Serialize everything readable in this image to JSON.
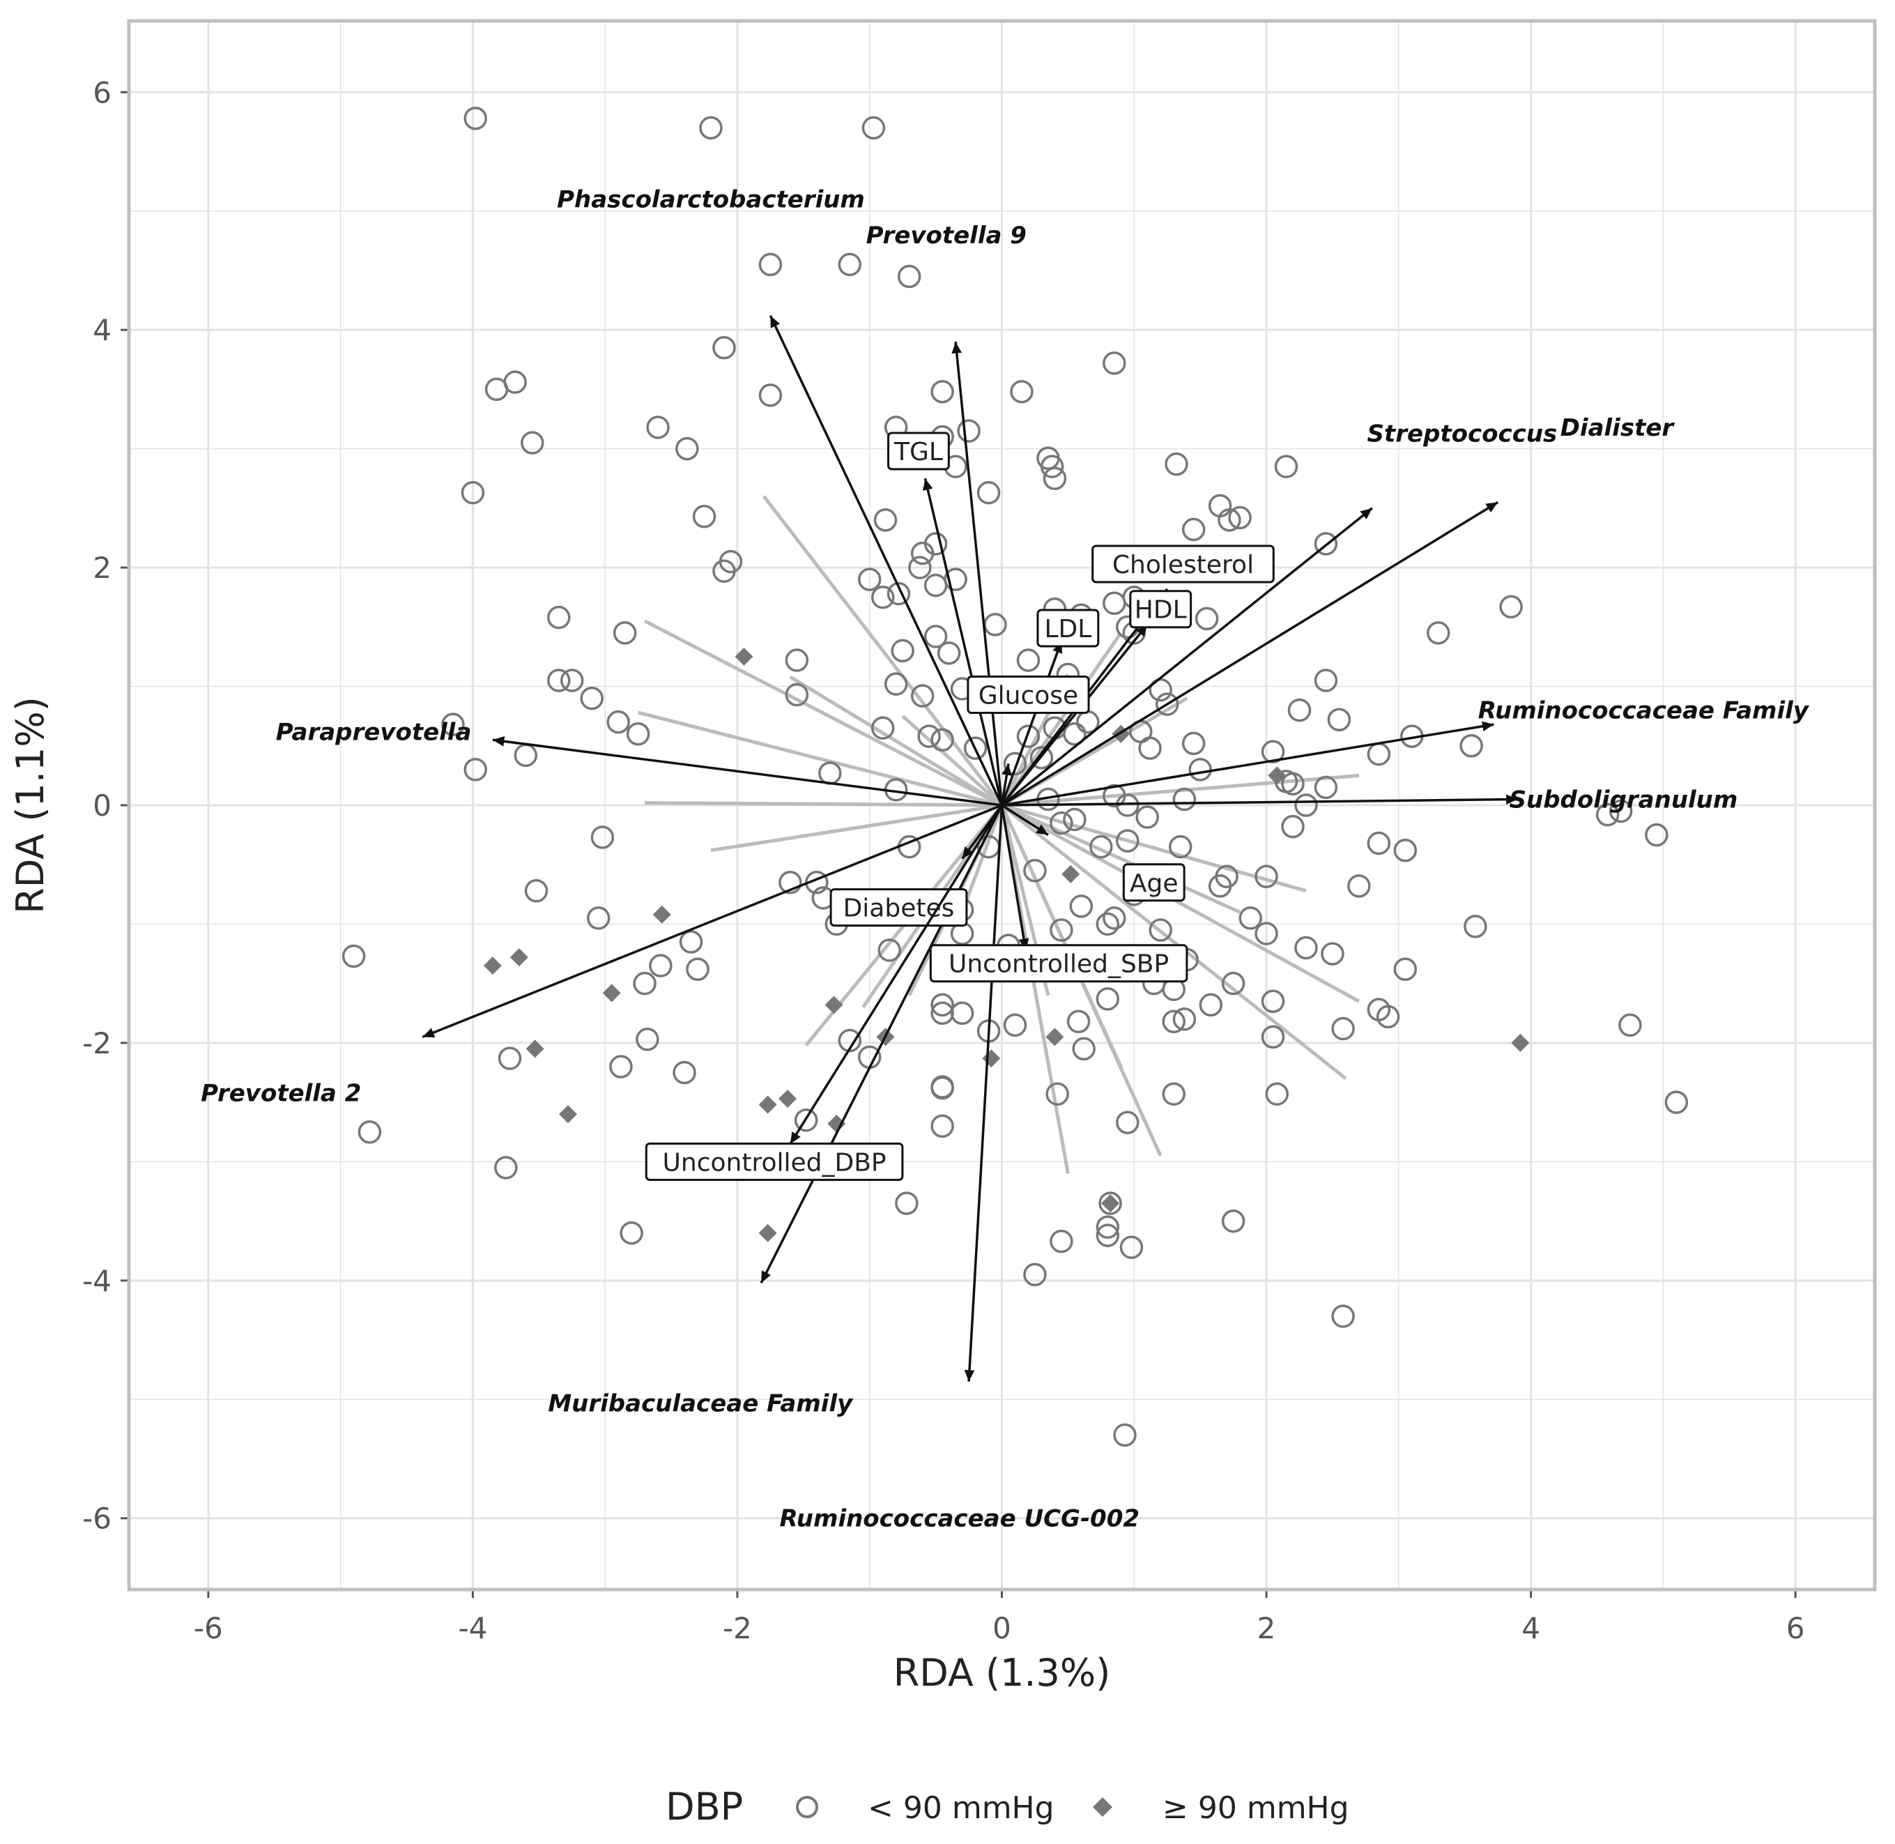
{
  "chart_data": {
    "type": "scatter",
    "subtype": "rda-biplot",
    "title": "",
    "xlabel": "RDA (1.3%)",
    "ylabel": "RDA (1.1%)",
    "xlim": [
      -6.6,
      6.6
    ],
    "ylim": [
      -6.6,
      6.6
    ],
    "xticks": [
      -6,
      -4,
      -2,
      0,
      2,
      4,
      6
    ],
    "yticks": [
      -6,
      -4,
      -2,
      0,
      2,
      4,
      6
    ],
    "xtick_labels": [
      "-6",
      "-4",
      "-2",
      "0",
      "2",
      "4",
      "6"
    ],
    "ytick_labels": [
      "-6",
      "-4",
      "-2",
      "0",
      "2",
      "4",
      "6"
    ],
    "grid": true,
    "legend": {
      "title": "DBP",
      "placement": "bottom",
      "items": [
        {
          "label": "< 90 mmHg",
          "marker": "open-circle"
        },
        {
          "label": "≥ 90 mmHg",
          "marker": "filled-diamond"
        }
      ]
    },
    "colors": {
      "point": "#777777",
      "arrow": "#111111",
      "minor_vector": "#bbbbbb",
      "grid": "#e3e3e3",
      "frame": "#bfbfbf"
    },
    "series": [
      {
        "name": "< 90 mmHg",
        "marker": "open-circle",
        "points": [
          [
            -3.98,
            5.78
          ],
          [
            -2.2,
            5.7
          ],
          [
            -0.97,
            5.7
          ],
          [
            -1.75,
            4.55
          ],
          [
            -1.15,
            4.55
          ],
          [
            -0.7,
            4.45
          ],
          [
            -2.1,
            3.85
          ],
          [
            0.85,
            3.72
          ],
          [
            -3.82,
            3.5
          ],
          [
            -3.68,
            3.56
          ],
          [
            -1.75,
            3.45
          ],
          [
            -0.45,
            3.48
          ],
          [
            0.15,
            3.48
          ],
          [
            -2.6,
            3.18
          ],
          [
            -0.8,
            3.18
          ],
          [
            -0.25,
            3.15
          ],
          [
            -3.55,
            3.05
          ],
          [
            -2.38,
            3.0
          ],
          [
            -0.45,
            3.1
          ],
          [
            0.35,
            2.92
          ],
          [
            1.32,
            2.87
          ],
          [
            -0.35,
            2.85
          ],
          [
            0.38,
            2.85
          ],
          [
            2.15,
            2.85
          ],
          [
            -4.0,
            2.63
          ],
          [
            -0.1,
            2.63
          ],
          [
            0.4,
            2.75
          ],
          [
            1.65,
            2.52
          ],
          [
            1.72,
            2.4
          ],
          [
            1.8,
            2.42
          ],
          [
            -2.25,
            2.43
          ],
          [
            -0.88,
            2.4
          ],
          [
            1.45,
            2.32
          ],
          [
            2.45,
            2.2
          ],
          [
            -0.6,
            2.12
          ],
          [
            -0.5,
            2.2
          ],
          [
            -2.05,
            2.05
          ],
          [
            -2.1,
            1.97
          ],
          [
            -0.62,
            2.0
          ],
          [
            -1.0,
            1.9
          ],
          [
            -0.35,
            1.9
          ],
          [
            -0.5,
            1.85
          ],
          [
            -0.9,
            1.75
          ],
          [
            -0.78,
            1.78
          ],
          [
            0.85,
            1.7
          ],
          [
            1.0,
            1.75
          ],
          [
            -3.35,
            1.58
          ],
          [
            -2.85,
            1.45
          ],
          [
            -0.05,
            1.52
          ],
          [
            0.4,
            1.65
          ],
          [
            0.6,
            1.6
          ],
          [
            1.55,
            1.57
          ],
          [
            1.0,
            1.45
          ],
          [
            0.95,
            1.5
          ],
          [
            3.3,
            1.45
          ],
          [
            3.85,
            1.67
          ],
          [
            -0.5,
            1.42
          ],
          [
            -0.4,
            1.28
          ],
          [
            0.2,
            1.22
          ],
          [
            -0.75,
            1.3
          ],
          [
            -1.55,
            1.22
          ],
          [
            -3.25,
            1.05
          ],
          [
            -3.35,
            1.05
          ],
          [
            -3.1,
            0.9
          ],
          [
            -1.55,
            0.93
          ],
          [
            -0.8,
            1.02
          ],
          [
            -0.6,
            0.92
          ],
          [
            -0.3,
            0.98
          ],
          [
            0.5,
            1.1
          ],
          [
            2.45,
            1.05
          ],
          [
            -4.15,
            0.68
          ],
          [
            -2.9,
            0.7
          ],
          [
            -2.75,
            0.6
          ],
          [
            -0.9,
            0.65
          ],
          [
            -0.55,
            0.58
          ],
          [
            0.2,
            0.58
          ],
          [
            0.4,
            0.65
          ],
          [
            0.55,
            0.6
          ],
          [
            0.65,
            0.7
          ],
          [
            1.05,
            0.62
          ],
          [
            1.12,
            0.48
          ],
          [
            1.25,
            0.85
          ],
          [
            1.2,
            0.97
          ],
          [
            1.45,
            0.52
          ],
          [
            2.05,
            0.45
          ],
          [
            2.25,
            0.8
          ],
          [
            2.55,
            0.72
          ],
          [
            2.85,
            0.43
          ],
          [
            3.1,
            0.58
          ],
          [
            3.55,
            0.5
          ],
          [
            -3.6,
            0.42
          ],
          [
            -3.98,
            0.3
          ],
          [
            -1.3,
            0.27
          ],
          [
            -0.45,
            0.55
          ],
          [
            -0.2,
            0.48
          ],
          [
            0.1,
            0.35
          ],
          [
            0.3,
            0.4
          ],
          [
            1.5,
            0.3
          ],
          [
            -0.8,
            0.13
          ],
          [
            0.35,
            0.05
          ],
          [
            0.85,
            0.08
          ],
          [
            0.95,
            0.0
          ],
          [
            1.38,
            0.05
          ],
          [
            2.15,
            0.2
          ],
          [
            2.2,
            0.18
          ],
          [
            2.3,
            0.0
          ],
          [
            2.45,
            0.15
          ],
          [
            4.58,
            -0.08
          ],
          [
            4.68,
            -0.05
          ],
          [
            4.95,
            -0.25
          ],
          [
            -3.02,
            -0.27
          ],
          [
            -0.7,
            -0.35
          ],
          [
            -0.1,
            -0.35
          ],
          [
            0.45,
            -0.15
          ],
          [
            0.55,
            -0.12
          ],
          [
            0.75,
            -0.35
          ],
          [
            0.95,
            -0.3
          ],
          [
            1.1,
            -0.1
          ],
          [
            1.35,
            -0.35
          ],
          [
            2.2,
            -0.18
          ],
          [
            2.85,
            -0.32
          ],
          [
            3.05,
            -0.38
          ],
          [
            -3.52,
            -0.72
          ],
          [
            -1.6,
            -0.65
          ],
          [
            -1.4,
            -0.65
          ],
          [
            -1.35,
            -0.78
          ],
          [
            0.25,
            -0.55
          ],
          [
            1.0,
            -0.75
          ],
          [
            1.7,
            -0.6
          ],
          [
            1.65,
            -0.68
          ],
          [
            2.0,
            -0.6
          ],
          [
            2.7,
            -0.68
          ],
          [
            -0.3,
            -0.88
          ],
          [
            0.6,
            -0.85
          ],
          [
            0.8,
            -1.0
          ],
          [
            0.85,
            -0.95
          ],
          [
            1.2,
            -1.05
          ],
          [
            1.88,
            -0.95
          ],
          [
            2.0,
            -1.08
          ],
          [
            2.3,
            -1.2
          ],
          [
            2.5,
            -1.25
          ],
          [
            3.58,
            -1.02
          ],
          [
            -3.05,
            -0.95
          ],
          [
            -1.25,
            -1.0
          ],
          [
            -0.3,
            -1.08
          ],
          [
            0.45,
            -1.05
          ],
          [
            -2.35,
            -1.15
          ],
          [
            -4.9,
            -1.27
          ],
          [
            -2.58,
            -1.35
          ],
          [
            -2.3,
            -1.38
          ],
          [
            -0.85,
            -1.22
          ],
          [
            0.05,
            -1.18
          ],
          [
            1.15,
            -1.5
          ],
          [
            1.3,
            -1.55
          ],
          [
            1.4,
            -1.3
          ],
          [
            1.75,
            -1.5
          ],
          [
            3.05,
            -1.38
          ],
          [
            -2.7,
            -1.5
          ],
          [
            -0.45,
            -1.68
          ],
          [
            -0.45,
            -1.75
          ],
          [
            -0.3,
            -1.75
          ],
          [
            0.8,
            -1.63
          ],
          [
            1.58,
            -1.68
          ],
          [
            2.05,
            -1.65
          ],
          [
            2.85,
            -1.72
          ],
          [
            2.92,
            -1.78
          ],
          [
            -0.1,
            -1.9
          ],
          [
            0.1,
            -1.85
          ],
          [
            0.58,
            -1.82
          ],
          [
            1.3,
            -1.82
          ],
          [
            1.38,
            -1.8
          ],
          [
            2.58,
            -1.88
          ],
          [
            4.75,
            -1.85
          ],
          [
            -2.68,
            -1.97
          ],
          [
            -1.15,
            -1.98
          ],
          [
            2.05,
            -1.95
          ],
          [
            -3.72,
            -2.13
          ],
          [
            -2.88,
            -2.2
          ],
          [
            -1.0,
            -2.12
          ],
          [
            0.62,
            -2.05
          ],
          [
            -2.4,
            -2.25
          ],
          [
            -0.45,
            -2.37
          ],
          [
            -0.45,
            -2.38
          ],
          [
            0.42,
            -2.43
          ],
          [
            1.3,
            -2.43
          ],
          [
            2.08,
            -2.43
          ],
          [
            5.1,
            -2.5
          ],
          [
            -1.48,
            -2.65
          ],
          [
            0.95,
            -2.67
          ],
          [
            -0.45,
            -2.7
          ],
          [
            -4.78,
            -2.75
          ],
          [
            -3.75,
            -3.05
          ],
          [
            -0.72,
            -3.35
          ],
          [
            0.82,
            -3.35
          ],
          [
            0.8,
            -3.55
          ],
          [
            0.8,
            -3.62
          ],
          [
            1.75,
            -3.5
          ],
          [
            -2.8,
            -3.6
          ],
          [
            0.45,
            -3.67
          ],
          [
            0.98,
            -3.72
          ],
          [
            0.25,
            -3.95
          ],
          [
            2.58,
            -4.3
          ],
          [
            0.93,
            -5.3
          ]
        ]
      },
      {
        "name": "≥ 90 mmHg",
        "marker": "filled-diamond",
        "points": [
          [
            -1.95,
            1.25
          ],
          [
            2.08,
            0.25
          ],
          [
            0.9,
            0.6
          ],
          [
            0.52,
            -0.58
          ],
          [
            -2.57,
            -0.92
          ],
          [
            -3.85,
            -1.35
          ],
          [
            -3.65,
            -1.28
          ],
          [
            -2.95,
            -1.58
          ],
          [
            -1.27,
            -1.68
          ],
          [
            -0.88,
            -1.95
          ],
          [
            0.4,
            -1.95
          ],
          [
            -3.53,
            -2.05
          ],
          [
            -0.08,
            -2.13
          ],
          [
            3.92,
            -2.0
          ],
          [
            -3.28,
            -2.6
          ],
          [
            -1.77,
            -2.52
          ],
          [
            -1.62,
            -2.47
          ],
          [
            -1.25,
            -2.68
          ],
          [
            -1.77,
            -3.6
          ],
          [
            0.82,
            -3.35
          ]
        ]
      }
    ],
    "species_arrows": [
      {
        "name": "Phascolarctobacterium",
        "end": [
          -1.75,
          4.12
        ]
      },
      {
        "name": "Prevotella 9",
        "end": [
          -0.35,
          3.9
        ]
      },
      {
        "name": "Streptococcus",
        "end": [
          2.8,
          2.5
        ]
      },
      {
        "name": "Dialister",
        "end": [
          3.75,
          2.55
        ]
      },
      {
        "name": "Paraprevotella",
        "end": [
          -3.85,
          0.55
        ]
      },
      {
        "name": "Ruminococcaceae Family",
        "end": [
          3.72,
          0.68
        ]
      },
      {
        "name": "Subdoligranulum",
        "end": [
          3.9,
          0.05
        ]
      },
      {
        "name": "Prevotella 2",
        "end": [
          -4.38,
          -1.95
        ]
      },
      {
        "name": "Muribaculaceae Family",
        "end": [
          -1.82,
          -4.02
        ]
      },
      {
        "name": "Ruminococcaceae UCG-002",
        "end": [
          -0.25,
          -4.85
        ]
      }
    ],
    "environmental_vectors": [
      {
        "name": "TGL",
        "end": [
          -0.58,
          2.75
        ]
      },
      {
        "name": "Cholesterol",
        "end": [
          1.25,
          1.82
        ]
      },
      {
        "name": "HDL",
        "end": [
          1.1,
          1.52
        ]
      },
      {
        "name": "LDL",
        "end": [
          0.45,
          1.38
        ]
      },
      {
        "name": "Glucose",
        "end": [
          0.05,
          0.35
        ]
      },
      {
        "name": "Age",
        "end": [
          0.35,
          -0.25
        ]
      },
      {
        "name": "Diabetes",
        "end": [
          -0.3,
          -0.45
        ]
      },
      {
        "name": "Uncontrolled_SBP",
        "end": [
          0.18,
          -1.22
        ]
      },
      {
        "name": "Uncontrolled_DBP",
        "end": [
          -1.6,
          -2.85
        ]
      }
    ],
    "minor_vectors": [
      [
        -1.8,
        2.6
      ],
      [
        -2.7,
        1.55
      ],
      [
        -2.75,
        0.78
      ],
      [
        -2.7,
        0.02
      ],
      [
        -2.2,
        -0.38
      ],
      [
        -1.48,
        -2.02
      ],
      [
        -1.05,
        -1.7
      ],
      [
        -0.7,
        -1.6
      ],
      [
        0.5,
        -3.1
      ],
      [
        1.2,
        -2.95
      ],
      [
        0.9,
        -2.2
      ],
      [
        2.6,
        -2.3
      ],
      [
        2.3,
        -0.72
      ],
      [
        2.7,
        -1.65
      ],
      [
        2.7,
        0.25
      ],
      [
        0.9,
        1.45
      ],
      [
        0.5,
        1.1
      ],
      [
        -1.6,
        1.08
      ],
      [
        -0.75,
        0.75
      ],
      [
        0.35,
        0.55
      ],
      [
        1.4,
        0.9
      ],
      [
        1.8,
        -0.9
      ],
      [
        0.35,
        -1.6
      ],
      [
        -0.3,
        -0.9
      ]
    ]
  }
}
